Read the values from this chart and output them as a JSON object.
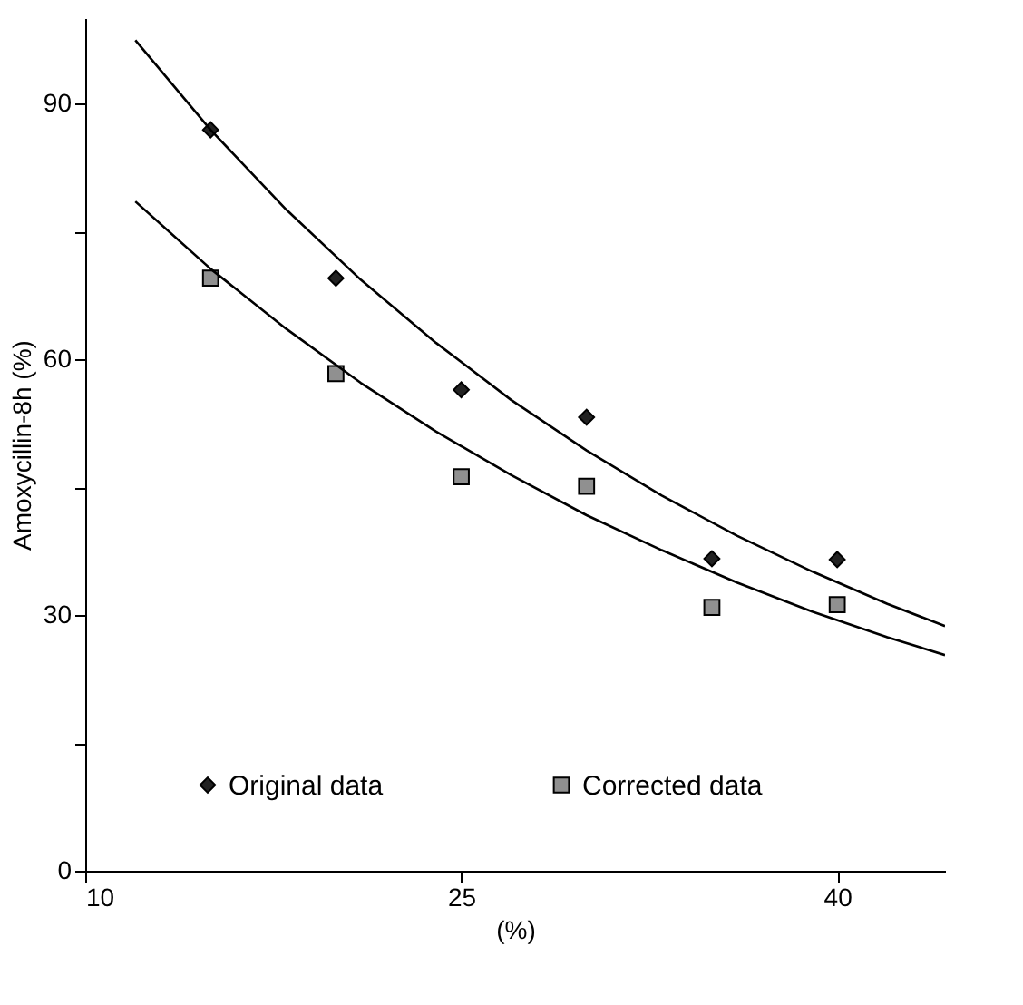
{
  "chart_data": {
    "type": "scatter",
    "xlabel": "(%)",
    "ylabel": "Amoxycillin-8h (%)",
    "xlim": [
      10,
      44.3
    ],
    "xticks": [
      10,
      25,
      40
    ],
    "ylim": [
      0,
      100
    ],
    "yticks": [
      0,
      {
        "value": 15,
        "label": null
      },
      30,
      {
        "value": 45,
        "label": null
      },
      60,
      {
        "value": 75,
        "label": null
      },
      90
    ],
    "grid": false,
    "legend": "bottom",
    "series": [
      {
        "name": "Original data",
        "marker": "diamond",
        "color": "#222222",
        "x": [
          15,
          20,
          25,
          30,
          35,
          40
        ],
        "values": [
          86.9,
          69.5,
          56.4,
          53.2,
          36.6,
          36.5
        ]
      },
      {
        "name": "Corrected data",
        "marker": "square",
        "color": "#909090",
        "x": [
          15,
          20,
          25,
          30,
          35,
          40
        ],
        "values": [
          69.5,
          58.3,
          46.2,
          45.1,
          30.9,
          31.2
        ]
      },
      {
        "type": "line",
        "color": "#000000",
        "line_style": "solid",
        "x": [
          12,
          15,
          18,
          21,
          24,
          27,
          30,
          33,
          36,
          39,
          42,
          44.3
        ],
        "values": [
          97.4,
          86.9,
          77.6,
          69.3,
          61.9,
          55.2,
          49.3,
          44.0,
          39.3,
          35.1,
          31.3,
          28.7
        ]
      },
      {
        "type": "line",
        "color": "#000000",
        "line_style": "solid",
        "x": [
          12,
          15,
          18,
          21,
          24,
          27,
          30,
          33,
          36,
          39,
          42,
          44.3
        ],
        "values": [
          78.5,
          70.6,
          63.6,
          57.2,
          51.5,
          46.4,
          41.7,
          37.6,
          33.8,
          30.4,
          27.4,
          25.3
        ]
      }
    ]
  }
}
